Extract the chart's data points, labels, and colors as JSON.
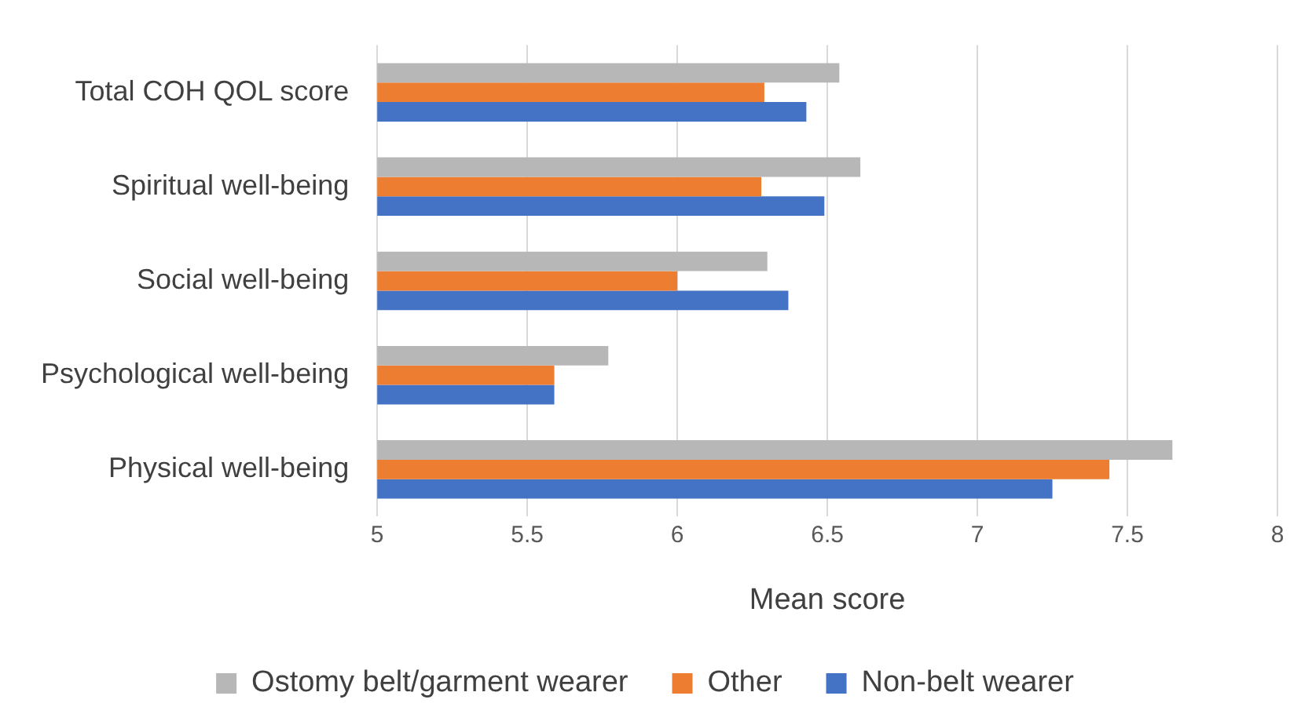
{
  "chart_data": {
    "type": "bar",
    "orientation": "horizontal",
    "xlabel": "Mean score",
    "categories": [
      "Total COH QOL score",
      "Spiritual well-being",
      "Social well-being",
      "Psychological well-being",
      "Physical well-being"
    ],
    "series": [
      {
        "name": "Ostomy belt/garment wearer",
        "color": "#b7b7b7",
        "values": [
          6.54,
          6.61,
          6.3,
          5.77,
          7.65
        ]
      },
      {
        "name": "Other",
        "color": "#ed7d31",
        "values": [
          6.29,
          6.28,
          6.0,
          5.59,
          7.44
        ]
      },
      {
        "name": "Non-belt wearer",
        "color": "#4472c4",
        "values": [
          6.43,
          6.49,
          6.37,
          5.59,
          7.25
        ]
      }
    ],
    "xlim": [
      5,
      8
    ],
    "xticks": [
      5,
      5.5,
      6,
      6.5,
      7,
      7.5,
      8
    ],
    "grid": "x",
    "legend": "bottom"
  }
}
